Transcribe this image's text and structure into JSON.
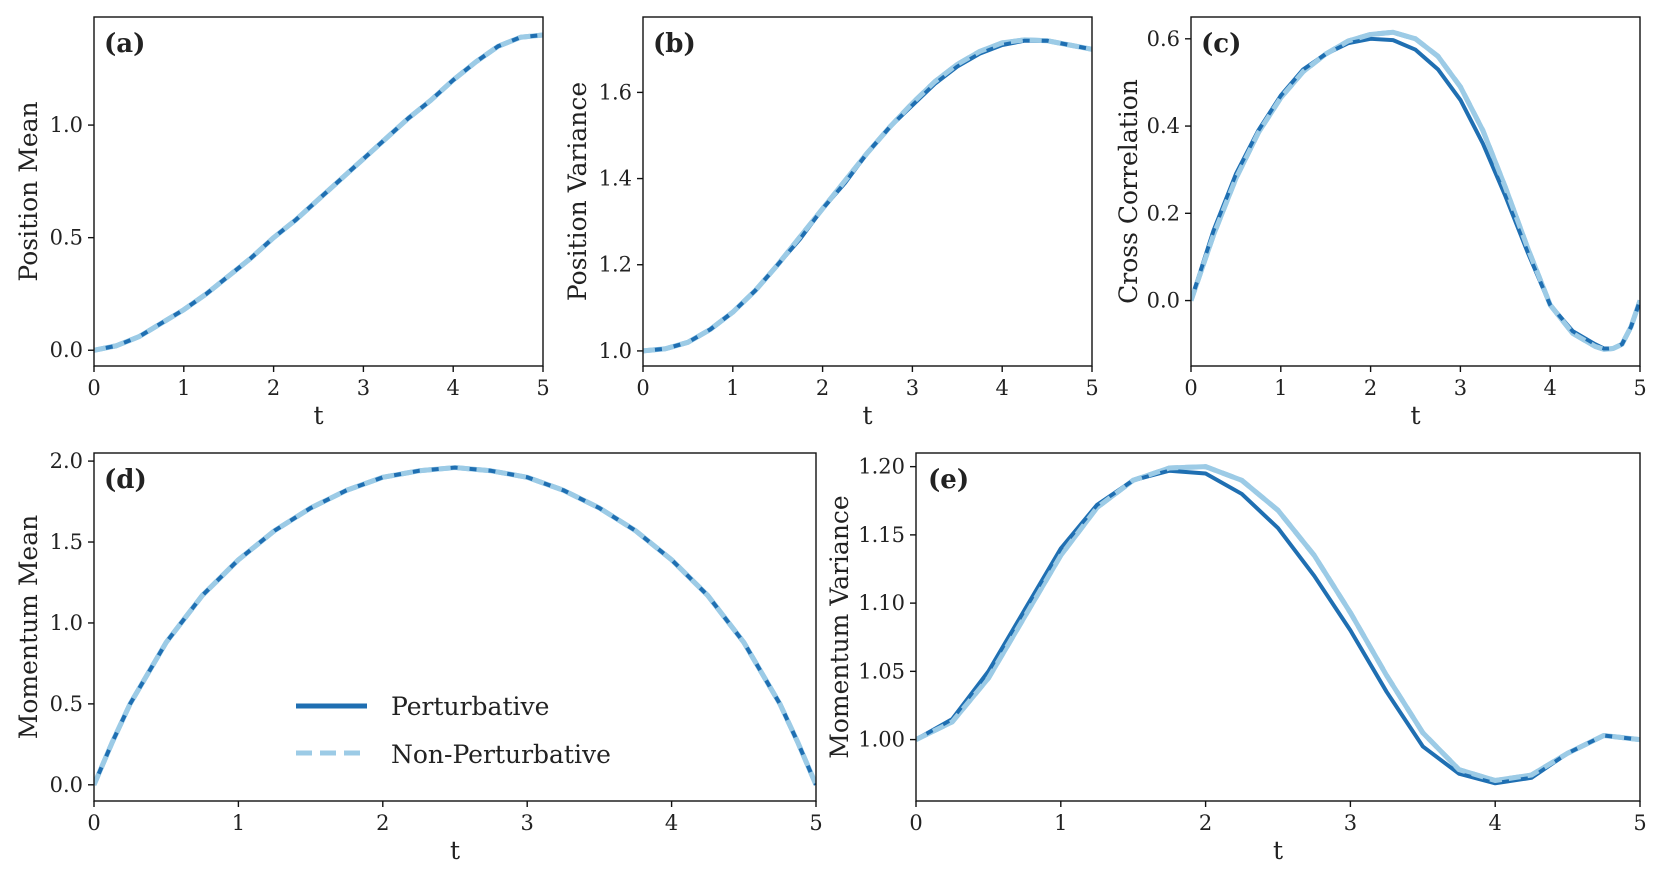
{
  "colors": {
    "perturbative": "#1f6fb2",
    "non_perturbative": "#9ccbe6",
    "axis": "#111111",
    "text": "#222222"
  },
  "legend": {
    "items": [
      {
        "label": "Perturbative",
        "style": "solid",
        "color": "#1f6fb2"
      },
      {
        "label": "Non-Perturbative",
        "style": "dashed",
        "color": "#9ccbe6"
      }
    ]
  },
  "chart_data": [
    {
      "id": "a",
      "tag": "(a)",
      "type": "line",
      "xlabel": "t",
      "ylabel": "Position Mean",
      "xlim": [
        0,
        5
      ],
      "ylim": [
        -0.07,
        1.48
      ],
      "xticks": [
        0,
        1,
        2,
        3,
        4,
        5
      ],
      "yticks": [
        0.0,
        0.5,
        1.0
      ],
      "ytick_labels": [
        "0.0",
        "0.5",
        "1.0"
      ],
      "x": [
        0,
        0.25,
        0.5,
        0.75,
        1,
        1.25,
        1.5,
        1.75,
        2,
        2.25,
        2.5,
        2.75,
        3,
        3.25,
        3.5,
        3.75,
        4,
        4.25,
        4.5,
        4.75,
        5
      ],
      "series": [
        {
          "name": "Perturbative",
          "values": [
            0,
            0.02,
            0.06,
            0.12,
            0.18,
            0.25,
            0.33,
            0.41,
            0.5,
            0.58,
            0.67,
            0.76,
            0.85,
            0.94,
            1.03,
            1.11,
            1.2,
            1.28,
            1.35,
            1.39,
            1.4
          ]
        },
        {
          "name": "Non-Perturbative",
          "values": [
            0,
            0.02,
            0.06,
            0.12,
            0.18,
            0.25,
            0.33,
            0.41,
            0.5,
            0.58,
            0.67,
            0.76,
            0.85,
            0.94,
            1.03,
            1.11,
            1.2,
            1.28,
            1.35,
            1.39,
            1.4
          ]
        }
      ]
    },
    {
      "id": "b",
      "tag": "(b)",
      "type": "line",
      "xlabel": "t",
      "ylabel": "Position Variance",
      "xlim": [
        0,
        5
      ],
      "ylim": [
        0.965,
        1.775
      ],
      "xticks": [
        0,
        1,
        2,
        3,
        4,
        5
      ],
      "yticks": [
        1.0,
        1.2,
        1.4,
        1.6
      ],
      "ytick_labels": [
        "1.0",
        "1.2",
        "1.4",
        "1.6"
      ],
      "x": [
        0,
        0.25,
        0.5,
        0.75,
        1,
        1.25,
        1.5,
        1.75,
        2,
        2.25,
        2.5,
        2.75,
        3,
        3.25,
        3.5,
        3.75,
        4,
        4.25,
        4.5,
        4.75,
        5
      ],
      "series": [
        {
          "name": "Perturbative",
          "values": [
            1.0,
            1.005,
            1.02,
            1.05,
            1.09,
            1.14,
            1.2,
            1.26,
            1.33,
            1.39,
            1.46,
            1.52,
            1.57,
            1.62,
            1.66,
            1.69,
            1.71,
            1.72,
            1.72,
            1.71,
            1.7
          ]
        },
        {
          "name": "Non-Perturbative",
          "values": [
            1.0,
            1.005,
            1.02,
            1.05,
            1.09,
            1.14,
            1.2,
            1.265,
            1.33,
            1.395,
            1.46,
            1.52,
            1.575,
            1.625,
            1.665,
            1.695,
            1.715,
            1.722,
            1.72,
            1.71,
            1.7
          ]
        }
      ]
    },
    {
      "id": "c",
      "tag": "(c)",
      "type": "line",
      "xlabel": "t",
      "ylabel": "Cross Correlation",
      "xlim": [
        0,
        5
      ],
      "ylim": [
        -0.15,
        0.65
      ],
      "xticks": [
        0,
        1,
        2,
        3,
        4,
        5
      ],
      "yticks": [
        0.0,
        0.2,
        0.4,
        0.6
      ],
      "ytick_labels": [
        "0.0",
        "0.2",
        "0.4",
        "0.6"
      ],
      "x": [
        0,
        0.25,
        0.5,
        0.75,
        1,
        1.25,
        1.5,
        1.75,
        2,
        2.25,
        2.5,
        2.75,
        3,
        3.25,
        3.5,
        3.75,
        4,
        4.25,
        4.5,
        4.6,
        4.7,
        4.8,
        4.9,
        5
      ],
      "series": [
        {
          "name": "Perturbative",
          "values": [
            0.0,
            0.16,
            0.29,
            0.39,
            0.47,
            0.53,
            0.565,
            0.59,
            0.6,
            0.597,
            0.575,
            0.53,
            0.46,
            0.36,
            0.24,
            0.11,
            -0.01,
            -0.07,
            -0.1,
            -0.11,
            -0.11,
            -0.1,
            -0.06,
            0.0
          ]
        },
        {
          "name": "Non-Perturbative",
          "values": [
            0.0,
            0.15,
            0.28,
            0.385,
            0.465,
            0.525,
            0.565,
            0.595,
            0.61,
            0.615,
            0.6,
            0.56,
            0.49,
            0.39,
            0.26,
            0.12,
            -0.01,
            -0.075,
            -0.105,
            -0.112,
            -0.11,
            -0.1,
            -0.06,
            0.0
          ]
        }
      ]
    },
    {
      "id": "d",
      "tag": "(d)",
      "type": "line",
      "xlabel": "t",
      "ylabel": "Momentum Mean",
      "xlim": [
        0,
        5
      ],
      "ylim": [
        -0.1,
        2.05
      ],
      "xticks": [
        0,
        1,
        2,
        3,
        4,
        5
      ],
      "yticks": [
        0.0,
        0.5,
        1.0,
        1.5,
        2.0
      ],
      "ytick_labels": [
        "0.0",
        "0.5",
        "1.0",
        "1.5",
        "2.0"
      ],
      "x": [
        0,
        0.125,
        0.25,
        0.5,
        0.75,
        1,
        1.25,
        1.5,
        1.75,
        2,
        2.25,
        2.5,
        2.75,
        3,
        3.25,
        3.5,
        3.75,
        4,
        4.25,
        4.5,
        4.75,
        4.875,
        5
      ],
      "series": [
        {
          "name": "Perturbative",
          "values": [
            0,
            0.26,
            0.5,
            0.88,
            1.17,
            1.39,
            1.57,
            1.71,
            1.82,
            1.9,
            1.94,
            1.96,
            1.94,
            1.9,
            1.82,
            1.71,
            1.57,
            1.39,
            1.17,
            0.88,
            0.5,
            0.26,
            0
          ]
        },
        {
          "name": "Non-Perturbative",
          "values": [
            0,
            0.26,
            0.5,
            0.88,
            1.17,
            1.39,
            1.57,
            1.71,
            1.82,
            1.9,
            1.94,
            1.96,
            1.94,
            1.9,
            1.82,
            1.71,
            1.57,
            1.39,
            1.17,
            0.88,
            0.5,
            0.26,
            0
          ]
        }
      ]
    },
    {
      "id": "e",
      "tag": "(e)",
      "type": "line",
      "xlabel": "t",
      "ylabel": "Momentum Variance",
      "xlim": [
        0,
        5
      ],
      "ylim": [
        0.955,
        1.21
      ],
      "xticks": [
        0,
        1,
        2,
        3,
        4,
        5
      ],
      "yticks": [
        1.0,
        1.05,
        1.1,
        1.15,
        1.2
      ],
      "ytick_labels": [
        "1.00",
        "1.05",
        "1.10",
        "1.15",
        "1.20"
      ],
      "x": [
        0,
        0.25,
        0.5,
        0.75,
        1,
        1.25,
        1.5,
        1.75,
        2,
        2.25,
        2.5,
        2.75,
        3,
        3.25,
        3.5,
        3.75,
        4,
        4.25,
        4.5,
        4.75,
        5
      ],
      "series": [
        {
          "name": "Perturbative",
          "values": [
            1.0,
            1.015,
            1.05,
            1.095,
            1.14,
            1.172,
            1.19,
            1.197,
            1.195,
            1.18,
            1.155,
            1.12,
            1.08,
            1.035,
            0.995,
            0.975,
            0.968,
            0.972,
            0.99,
            1.003,
            1.0
          ]
        },
        {
          "name": "Non-Perturbative",
          "values": [
            1.0,
            1.013,
            1.045,
            1.09,
            1.135,
            1.17,
            1.19,
            1.199,
            1.2,
            1.19,
            1.168,
            1.135,
            1.093,
            1.047,
            1.005,
            0.978,
            0.97,
            0.974,
            0.99,
            1.003,
            1.0
          ]
        }
      ]
    }
  ]
}
